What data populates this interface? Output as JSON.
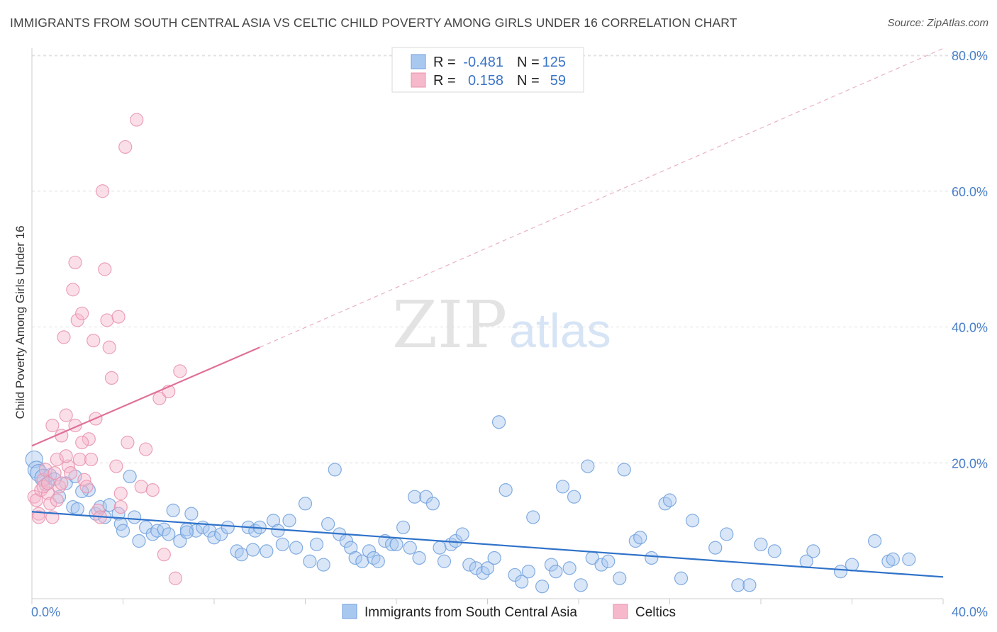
{
  "header": {
    "title": "IMMIGRANTS FROM SOUTH CENTRAL ASIA VS CELTIC CHILD POVERTY AMONG GIRLS UNDER 16 CORRELATION CHART",
    "source": "Source: ZipAtlas.com"
  },
  "watermark": {
    "zip": "ZIP",
    "atlas": "atlas"
  },
  "legend": {
    "rows": [
      {
        "r_label": "R =",
        "r_value": "-0.481",
        "n_label": "N =",
        "n_value": "125",
        "color": "#a9c8f0"
      },
      {
        "r_label": "R =",
        "r_value": "0.158",
        "n_label": "N =",
        "n_value": "59",
        "color": "#f6b8cb"
      }
    ]
  },
  "bottom_legend": {
    "items": [
      {
        "label": "Immigrants from South Central Asia",
        "color": "#a9c8f0"
      },
      {
        "label": "Celtics",
        "color": "#f6b8cb"
      }
    ]
  },
  "chart_data": {
    "type": "scatter",
    "title": "IMMIGRANTS FROM SOUTH CENTRAL ASIA VS CELTIC CHILD POVERTY AMONG GIRLS UNDER 16 CORRELATION CHART",
    "xlabel": "",
    "ylabel": "Child Poverty Among Girls Under 16",
    "xlim": [
      0,
      40
    ],
    "ylim": [
      0,
      80
    ],
    "x_tick_labels": [
      "0.0%",
      "40.0%"
    ],
    "y_ticks": [
      20,
      40,
      60,
      80
    ],
    "y_tick_labels": [
      "20.0%",
      "40.0%",
      "60.0%",
      "80.0%"
    ],
    "grid": "horizontal dashed",
    "legend_position": "top-center",
    "series": [
      {
        "name": "Immigrants from South Central Asia",
        "color": "#a9c8f0",
        "stroke": "#6f9fdc",
        "trend": {
          "x": [
            0,
            40
          ],
          "y": [
            12.8,
            3.2
          ],
          "color": "#2f72c9",
          "style": "solid"
        },
        "points": [
          [
            0.1,
            20.5
          ],
          [
            0.2,
            19.0
          ],
          [
            0.3,
            18.5
          ],
          [
            0.5,
            17.8
          ],
          [
            0.6,
            16.8
          ],
          [
            0.8,
            18.2
          ],
          [
            1.0,
            17.6
          ],
          [
            1.2,
            15.0
          ],
          [
            1.5,
            17.0
          ],
          [
            1.8,
            13.5
          ],
          [
            1.9,
            18.0
          ],
          [
            2.0,
            13.2
          ],
          [
            2.5,
            16.0
          ],
          [
            2.8,
            12.5
          ],
          [
            3.0,
            13.5
          ],
          [
            3.2,
            12.0
          ],
          [
            3.4,
            13.8
          ],
          [
            3.8,
            12.5
          ],
          [
            3.9,
            11.0
          ],
          [
            4.0,
            10.0
          ],
          [
            4.3,
            18.0
          ],
          [
            4.5,
            12.0
          ],
          [
            4.7,
            8.5
          ],
          [
            5.0,
            10.5
          ],
          [
            5.3,
            9.5
          ],
          [
            5.5,
            10.0
          ],
          [
            5.8,
            10.2
          ],
          [
            6.0,
            9.5
          ],
          [
            6.2,
            13.0
          ],
          [
            6.5,
            8.5
          ],
          [
            6.8,
            10.2
          ],
          [
            7.0,
            12.5
          ],
          [
            7.2,
            10.0
          ],
          [
            7.5,
            10.5
          ],
          [
            7.8,
            10.0
          ],
          [
            8.0,
            9.0
          ],
          [
            8.3,
            9.5
          ],
          [
            8.6,
            10.5
          ],
          [
            9.0,
            7.0
          ],
          [
            9.2,
            6.5
          ],
          [
            9.5,
            10.5
          ],
          [
            9.8,
            10.0
          ],
          [
            10.0,
            10.5
          ],
          [
            10.3,
            7.0
          ],
          [
            10.6,
            11.5
          ],
          [
            10.8,
            10.0
          ],
          [
            11.0,
            8.0
          ],
          [
            11.3,
            11.5
          ],
          [
            11.6,
            7.5
          ],
          [
            12.0,
            14.0
          ],
          [
            12.2,
            5.5
          ],
          [
            12.5,
            8.0
          ],
          [
            12.8,
            5.0
          ],
          [
            13.0,
            11.0
          ],
          [
            13.3,
            19.0
          ],
          [
            13.5,
            9.5
          ],
          [
            13.8,
            8.5
          ],
          [
            14.0,
            7.5
          ],
          [
            14.2,
            6.0
          ],
          [
            14.5,
            5.5
          ],
          [
            14.8,
            7.0
          ],
          [
            15.0,
            6.0
          ],
          [
            15.2,
            5.5
          ],
          [
            15.5,
            8.5
          ],
          [
            15.8,
            8.0
          ],
          [
            16.0,
            8.0
          ],
          [
            16.3,
            10.5
          ],
          [
            16.6,
            7.5
          ],
          [
            16.8,
            15.0
          ],
          [
            17.0,
            6.0
          ],
          [
            17.3,
            15.0
          ],
          [
            17.6,
            14.0
          ],
          [
            17.9,
            7.5
          ],
          [
            18.1,
            5.5
          ],
          [
            18.4,
            8.0
          ],
          [
            18.6,
            8.5
          ],
          [
            18.9,
            9.5
          ],
          [
            19.2,
            5.0
          ],
          [
            19.5,
            4.5
          ],
          [
            19.8,
            3.8
          ],
          [
            20.0,
            4.5
          ],
          [
            20.3,
            6.0
          ],
          [
            20.5,
            26.0
          ],
          [
            20.8,
            16.0
          ],
          [
            21.2,
            3.5
          ],
          [
            21.5,
            2.5
          ],
          [
            21.8,
            4.0
          ],
          [
            22.0,
            12.0
          ],
          [
            22.4,
            1.8
          ],
          [
            22.8,
            5.0
          ],
          [
            23.0,
            4.0
          ],
          [
            23.3,
            16.5
          ],
          [
            23.6,
            4.5
          ],
          [
            23.8,
            15.0
          ],
          [
            24.1,
            2.0
          ],
          [
            24.4,
            19.5
          ],
          [
            24.6,
            6.0
          ],
          [
            25.0,
            5.0
          ],
          [
            25.3,
            5.5
          ],
          [
            25.8,
            3.0
          ],
          [
            26.0,
            19.0
          ],
          [
            26.5,
            8.5
          ],
          [
            26.7,
            9.0
          ],
          [
            27.2,
            6.0
          ],
          [
            27.8,
            14.0
          ],
          [
            28.0,
            14.5
          ],
          [
            28.5,
            3.0
          ],
          [
            29.0,
            11.5
          ],
          [
            30.0,
            7.5
          ],
          [
            30.5,
            9.5
          ],
          [
            31.0,
            2.0
          ],
          [
            31.5,
            2.0
          ],
          [
            32.0,
            8.0
          ],
          [
            32.6,
            7.0
          ],
          [
            34.0,
            5.5
          ],
          [
            34.3,
            7.0
          ],
          [
            35.5,
            4.0
          ],
          [
            36.0,
            5.0
          ],
          [
            37.0,
            8.5
          ],
          [
            37.6,
            5.5
          ],
          [
            37.8,
            5.8
          ],
          [
            38.5,
            5.8
          ],
          [
            2.2,
            15.8
          ],
          [
            6.8,
            9.8
          ],
          [
            9.7,
            7.2
          ]
        ]
      },
      {
        "name": "Celtics",
        "color": "#f6b8cb",
        "stroke": "#e892ad",
        "trend": {
          "x": [
            0,
            10
          ],
          "y": [
            22.5,
            37.0
          ],
          "color": "#e07099",
          "style": "solid",
          "extension_x": [
            10,
            40
          ],
          "extension_y": [
            37.0,
            81.0
          ],
          "extension_style": "dashed"
        },
        "points": [
          [
            0.1,
            15.0
          ],
          [
            0.2,
            14.5
          ],
          [
            0.3,
            12.5
          ],
          [
            0.4,
            16.0
          ],
          [
            0.5,
            17.5
          ],
          [
            0.6,
            19.0
          ],
          [
            0.7,
            15.5
          ],
          [
            0.8,
            14.0
          ],
          [
            0.9,
            12.0
          ],
          [
            0.9,
            25.5
          ],
          [
            1.0,
            18.5
          ],
          [
            1.1,
            20.5
          ],
          [
            1.2,
            16.5
          ],
          [
            1.3,
            17.0
          ],
          [
            1.4,
            38.5
          ],
          [
            1.5,
            27.0
          ],
          [
            1.6,
            19.5
          ],
          [
            1.7,
            18.5
          ],
          [
            1.8,
            45.5
          ],
          [
            1.9,
            25.5
          ],
          [
            2.0,
            41.0
          ],
          [
            2.1,
            20.5
          ],
          [
            2.2,
            42.0
          ],
          [
            2.3,
            17.5
          ],
          [
            2.4,
            16.5
          ],
          [
            2.5,
            23.5
          ],
          [
            2.6,
            20.5
          ],
          [
            2.7,
            38.0
          ],
          [
            2.8,
            26.5
          ],
          [
            2.9,
            13.0
          ],
          [
            3.0,
            12.0
          ],
          [
            3.1,
            60.0
          ],
          [
            3.2,
            48.5
          ],
          [
            3.3,
            41.0
          ],
          [
            3.4,
            37.0
          ],
          [
            3.5,
            32.5
          ],
          [
            3.7,
            19.5
          ],
          [
            3.8,
            41.5
          ],
          [
            3.9,
            13.5
          ],
          [
            3.9,
            15.5
          ],
          [
            4.1,
            66.5
          ],
          [
            4.2,
            23.0
          ],
          [
            4.6,
            70.5
          ],
          [
            4.8,
            16.5
          ],
          [
            5.0,
            22.0
          ],
          [
            5.3,
            16.0
          ],
          [
            5.6,
            29.5
          ],
          [
            5.8,
            6.5
          ],
          [
            6.0,
            30.5
          ],
          [
            6.3,
            3.0
          ],
          [
            6.5,
            33.5
          ],
          [
            0.3,
            12.0
          ],
          [
            0.5,
            16.5
          ],
          [
            1.1,
            14.5
          ],
          [
            1.3,
            24.0
          ],
          [
            1.5,
            21.0
          ],
          [
            0.7,
            17.0
          ],
          [
            1.9,
            49.5
          ],
          [
            2.2,
            23.0
          ]
        ]
      }
    ]
  }
}
